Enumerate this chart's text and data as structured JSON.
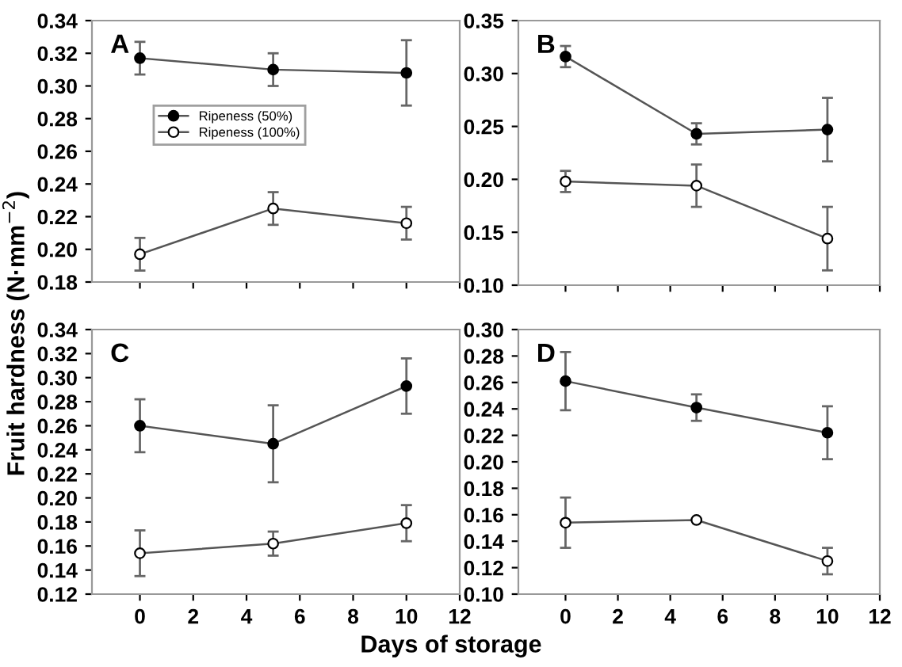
{
  "chart_data": [
    {
      "type": "line",
      "annotations": [
        "A"
      ],
      "ylabel": "Fruit hardness (N·mm$^{−2}$)",
      "x": [
        0,
        5,
        10
      ],
      "xlim": [
        -1.8,
        12
      ],
      "xticks": [
        0,
        2,
        4,
        6,
        8,
        10,
        12
      ],
      "ylim": [
        0.18,
        0.34
      ],
      "yticks": [
        {
          "value": 0.18,
          "label": "0.18"
        },
        {
          "value": 0.2,
          "label": "0.20"
        },
        {
          "value": 0.22,
          "label": "0.22"
        },
        {
          "value": 0.24,
          "label": "0.24"
        },
        {
          "value": 0.26,
          "label": "0.26"
        },
        {
          "value": 0.28,
          "label": "0.28"
        },
        {
          "value": 0.3,
          "label": "0.30"
        },
        {
          "value": 0.32,
          "label": "0.32"
        },
        {
          "value": 0.34,
          "label": "0.34"
        }
      ],
      "tick_labels": "y",
      "marker": "circle",
      "legend": "left",
      "grid": false,
      "series": [
        {
          "name": "Ripeness (50%)",
          "color": "#000000",
          "values": [
            0.317,
            0.31,
            0.308
          ],
          "errors": [
            0.01,
            0.01,
            0.02
          ]
        },
        {
          "name": "Ripeness (100%)",
          "color": "#ffffff",
          "values": [
            0.197,
            0.225,
            0.216
          ],
          "errors": [
            0.01,
            0.01,
            0.01
          ]
        }
      ]
    },
    {
      "type": "line",
      "annotations": [
        "B"
      ],
      "x": [
        0,
        5,
        10
      ],
      "xlim": [
        -1.8,
        12
      ],
      "xticks": [
        0,
        2,
        4,
        6,
        8,
        10,
        12
      ],
      "ylim": [
        0.1,
        0.35
      ],
      "yticks": [
        {
          "value": 0.1,
          "label": "0.10"
        },
        {
          "value": 0.15,
          "label": "0.15"
        },
        {
          "value": 0.2,
          "label": "0.20"
        },
        {
          "value": 0.25,
          "label": "0.25"
        },
        {
          "value": 0.3,
          "label": "0.30"
        },
        {
          "value": 0.35,
          "label": "0.35"
        }
      ],
      "tick_labels": "y",
      "marker": "circle",
      "grid": false,
      "series": [
        {
          "color": "#000000",
          "values": [
            0.316,
            0.243,
            0.247
          ],
          "errors": [
            0.01,
            0.01,
            0.03
          ]
        },
        {
          "color": "#ffffff",
          "values": [
            0.198,
            0.194,
            0.144
          ],
          "errors": [
            0.01,
            0.02,
            0.03
          ]
        }
      ]
    },
    {
      "type": "line",
      "annotations": [
        "C"
      ],
      "xlabel": "Days of storage",
      "x": [
        0,
        5,
        10
      ],
      "xlim": [
        -1.8,
        12
      ],
      "xticks": [
        0,
        2,
        4,
        6,
        8,
        10,
        12
      ],
      "ylim": [
        0.12,
        0.34
      ],
      "yticks": [
        {
          "value": 0.12,
          "label": "0.12"
        },
        {
          "value": 0.14,
          "label": "0.14"
        },
        {
          "value": 0.16,
          "label": "0.16"
        },
        {
          "value": 0.18,
          "label": "0.18"
        },
        {
          "value": 0.2,
          "label": "0.20"
        },
        {
          "value": 0.22,
          "label": "0.22"
        },
        {
          "value": 0.24,
          "label": "0.24"
        },
        {
          "value": 0.26,
          "label": "0.26"
        },
        {
          "value": 0.28,
          "label": "0.28"
        },
        {
          "value": 0.3,
          "label": "0.30"
        },
        {
          "value": 0.32,
          "label": "0.32"
        },
        {
          "value": 0.34,
          "label": "0.34"
        }
      ],
      "marker": "circle",
      "grid": false,
      "series": [
        {
          "color": "#000000",
          "values": [
            0.26,
            0.245,
            0.293
          ],
          "errors": [
            0.022,
            0.032,
            0.023
          ]
        },
        {
          "color": "#ffffff",
          "values": [
            0.154,
            0.162,
            0.179
          ],
          "errors": [
            0.019,
            0.01,
            0.015
          ]
        }
      ]
    },
    {
      "type": "line",
      "annotations": [
        "D"
      ],
      "x": [
        0,
        5,
        10
      ],
      "xlim": [
        -1.8,
        12
      ],
      "xticks": [
        0,
        2,
        4,
        6,
        8,
        10,
        12
      ],
      "ylim": [
        0.1,
        0.3
      ],
      "yticks": [
        {
          "value": 0.1,
          "label": "0.10"
        },
        {
          "value": 0.12,
          "label": "0.12"
        },
        {
          "value": 0.14,
          "label": "0.14"
        },
        {
          "value": 0.16,
          "label": "0.16"
        },
        {
          "value": 0.18,
          "label": "0.18"
        },
        {
          "value": 0.2,
          "label": "0.20"
        },
        {
          "value": 0.22,
          "label": "0.22"
        },
        {
          "value": 0.24,
          "label": "0.24"
        },
        {
          "value": 0.26,
          "label": "0.26"
        },
        {
          "value": 0.28,
          "label": "0.28"
        },
        {
          "value": 0.3,
          "label": "0.30"
        }
      ],
      "marker": "circle",
      "grid": false,
      "series": [
        {
          "color": "#000000",
          "values": [
            0.261,
            0.241,
            0.222
          ],
          "errors": [
            0.022,
            0.01,
            0.02
          ]
        },
        {
          "color": "#ffffff",
          "values": [
            0.154,
            0.156,
            0.125
          ],
          "errors": [
            0.019,
            0.0,
            0.01
          ]
        }
      ]
    }
  ]
}
